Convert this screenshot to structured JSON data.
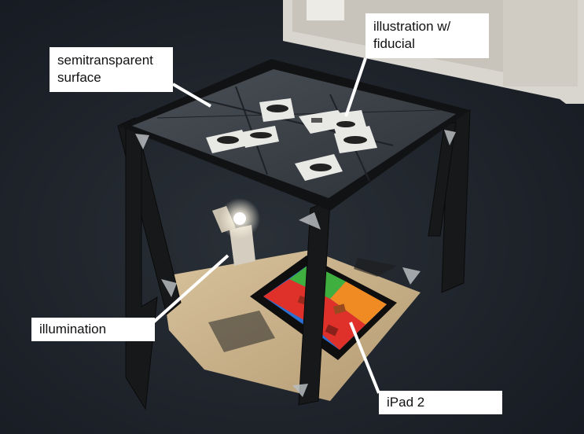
{
  "labels": {
    "surface": {
      "line1": "semitransparent",
      "line2": "surface"
    },
    "fiducial": {
      "line1": "illustration w/",
      "line2": "fiducial"
    },
    "illumination": "illumination",
    "ipad": "iPad 2"
  },
  "colors": {
    "floor": "#1c2127",
    "frame": "#17181a",
    "glass": "#3b4147",
    "wood": "#c9b08a",
    "ipad_blue": "#2a6fd1",
    "ipad_green": "#3fb03f",
    "ipad_red": "#e0302a",
    "ipad_orange": "#f08a22"
  }
}
